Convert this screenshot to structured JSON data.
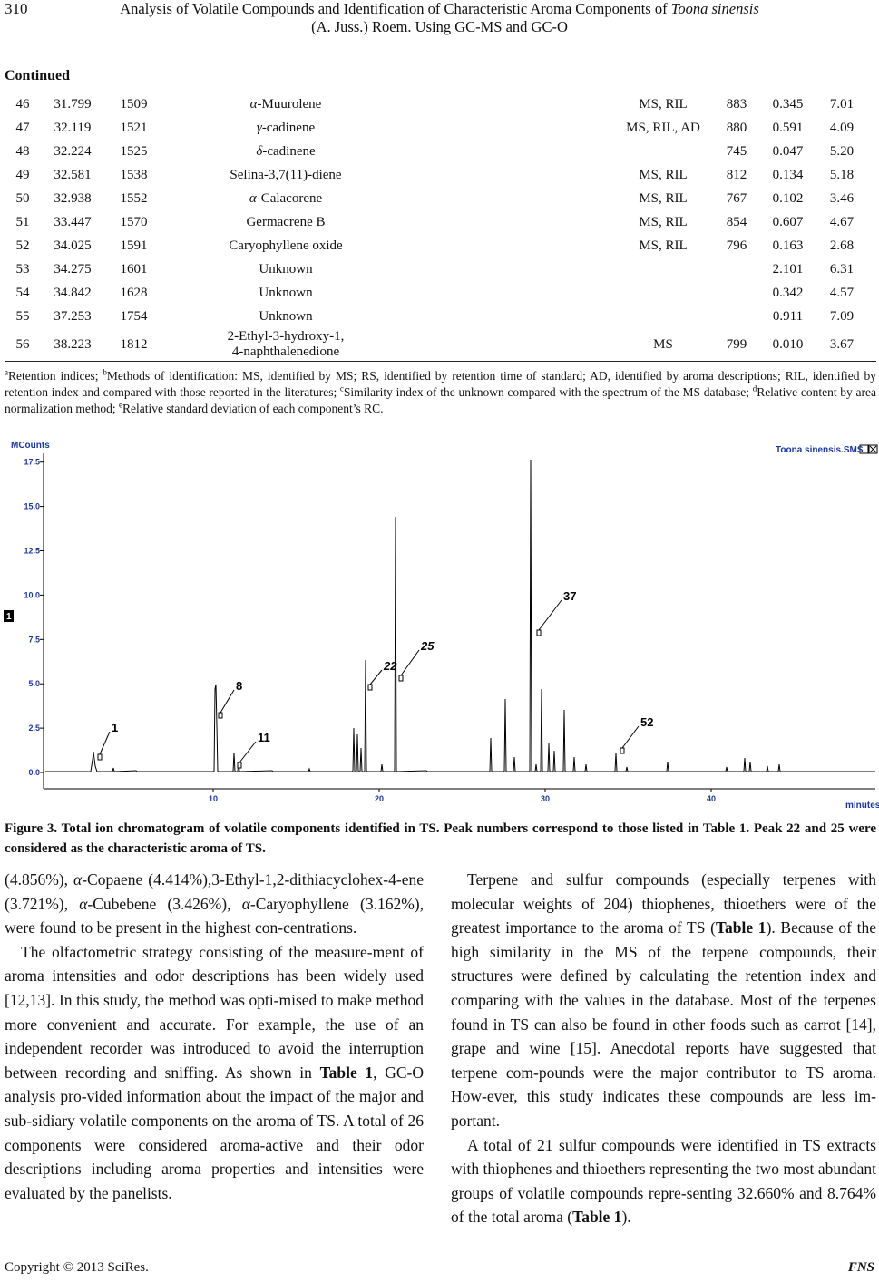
{
  "header": {
    "page_number": "310",
    "title_line1": "Analysis of Volatile Compounds and Identification of Characteristic Aroma Components of ",
    "title_line1_italic": "Toona sinensis",
    "title_line2": "(A. Juss.) Roem. Using GC-MS and GC-O"
  },
  "table": {
    "caption": "Continued",
    "rows": [
      [
        "46",
        "31.799",
        "1509",
        "α-Muurolene",
        "MS, RIL",
        "883",
        "0.345",
        "7.01"
      ],
      [
        "47",
        "32.119",
        "1521",
        "γ-cadinene",
        "MS, RIL, AD",
        "880",
        "0.591",
        "4.09"
      ],
      [
        "48",
        "32.224",
        "1525",
        "δ-cadinene",
        "",
        "745",
        "0.047",
        "5.20"
      ],
      [
        "49",
        "32.581",
        "1538",
        "Selina-3,7(11)-diene",
        "MS, RIL",
        "812",
        "0.134",
        "5.18"
      ],
      [
        "50",
        "32.938",
        "1552",
        "α-Calacorene",
        "MS, RIL",
        "767",
        "0.102",
        "3.46"
      ],
      [
        "51",
        "33.447",
        "1570",
        "Germacrene B",
        "MS, RIL",
        "854",
        "0.607",
        "4.67"
      ],
      [
        "52",
        "34.025",
        "1591",
        "Caryophyllene oxide",
        "MS, RIL",
        "796",
        "0.163",
        "2.68"
      ],
      [
        "53",
        "34.275",
        "1601",
        "Unknown",
        "",
        "",
        "2.101",
        "6.31"
      ],
      [
        "54",
        "34.842",
        "1628",
        "Unknown",
        "",
        "",
        "0.342",
        "4.57"
      ],
      [
        "55",
        "37.253",
        "1754",
        "Unknown",
        "",
        "",
        "0.911",
        "7.09"
      ],
      [
        "56",
        "38.223",
        "1812",
        "2-Ethyl-3-hydroxy-1,\n4-naphthalenedione",
        "MS",
        "799",
        "0.010",
        "3.67"
      ]
    ]
  },
  "footnote": [
    {
      "sup": "a"
    },
    "Retention indices; ",
    {
      "sup": "b"
    },
    "Methods of identification: MS, identified by MS; RS, identified by retention time of standard; AD, identified by aroma descriptions; RIL, identified by retention index and compared with those reported in the literatures; ",
    {
      "sup": "c"
    },
    "Similarity index of the unknown compared with the spectrum of the MS database; ",
    {
      "sup": "d"
    },
    "Relative content by area normalization method; ",
    {
      "sup": "e"
    },
    "Relative standard deviation of each component’s RC."
  ],
  "figure": {
    "y_axis_label": "MCounts",
    "file_label": "Toona sinensis.SMS",
    "trace_label": "1",
    "yticks": [
      "0.0",
      "2.5",
      "5.0",
      "7.5",
      "10.0",
      "12.5",
      "15.0",
      "17.5"
    ],
    "xticks": [
      "10",
      "20",
      "30",
      "40"
    ],
    "x_axis_label": "minutes",
    "peaks": [
      "1",
      "8",
      "11",
      "22",
      "25",
      "37",
      "52"
    ],
    "caption": "Figure 3. Total ion chromatogram of volatile components identified in TS. Peak numbers correspond to those listed in Table 1. Peak 22 and 25 were considered as the characteristic aroma of TS."
  },
  "body": {
    "left": [
      [
        "(4.856%), ",
        {
          "italic": "α"
        },
        "-Copaene (4.414%),3-Ethyl-1,2-dithiacyclohex-4-ene (3.721%), ",
        {
          "italic": "α"
        },
        "-Cubebene (3.426%), ",
        {
          "italic": "α"
        },
        "-Caryophyllene (3.162%), were found to be present in the highest con-centrations."
      ],
      [
        "The olfactometric strategy consisting of the measure-ment of aroma intensities and odor descriptions has been widely used [12,13]. In this study, the method was opti-mised to make method more convenient and accurate. For example, the use of an independent recorder was introduced to avoid the interruption between recording and sniffing. As shown in ",
        {
          "bold": "Table 1"
        },
        ", GC-O analysis pro-vided information about the impact of the major and sub-sidiary volatile components on the aroma of TS. A total of 26 components were considered aroma-active and their odor descriptions including aroma properties and intensities were evaluated by the panelists."
      ]
    ],
    "right": [
      [
        "Terpene and sulfur compounds (especially terpenes with molecular weights of 204) thiophenes, thioethers were of the greatest importance to the aroma of TS (",
        {
          "bold": "Table 1"
        },
        "). Because of the high similarity in the MS of the terpene compounds, their structures were defined by calculating the retention index and comparing with the values in the database. Most of the terpenes found in TS can also be found in other foods such as carrot [14], grape and wine [15]. Anecdotal reports have suggested that terpene com-pounds were the major contributor to TS aroma. How-ever, this study indicates these compounds are less im-portant."
      ],
      [
        "A total of 21 sulfur compounds were identified in TS extracts with thiophenes and thioethers representing the two most abundant groups of volatile compounds repre-senting 32.660% and 8.764% of the total aroma (",
        {
          "bold": "Table 1"
        },
        ")."
      ]
    ]
  },
  "footer": {
    "copyright": "Copyright © 2013 SciRes.",
    "journal": "FNS"
  }
}
